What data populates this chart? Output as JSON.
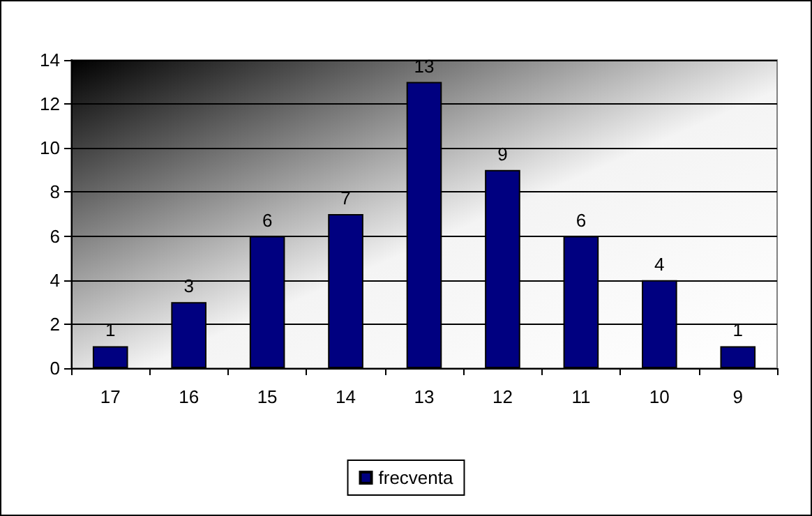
{
  "chart_data": {
    "type": "bar",
    "categories": [
      "17",
      "16",
      "15",
      "14",
      "13",
      "12",
      "11",
      "10",
      "9"
    ],
    "series": [
      {
        "name": "frecventa",
        "color": "#000080",
        "values": [
          1,
          3,
          6,
          7,
          13,
          9,
          6,
          4,
          1
        ]
      }
    ],
    "ylim": [
      0,
      14
    ],
    "yticks": [
      0,
      2,
      4,
      6,
      8,
      10,
      12,
      14
    ],
    "grid": "y",
    "legend": "bottom",
    "data_labels": true
  }
}
